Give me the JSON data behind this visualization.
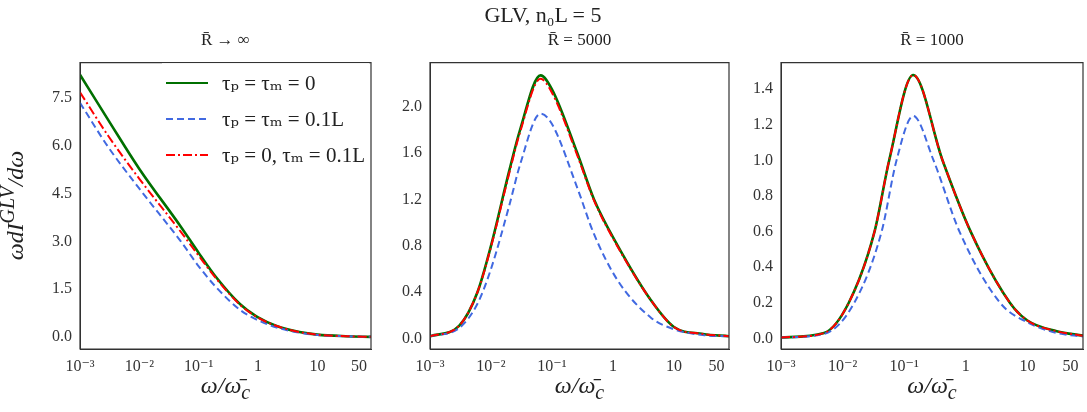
{
  "chart_data": [
    {
      "type": "line",
      "subtitle": "R̄ → ∞",
      "xlabel": "ω/ω̄$_{c}$",
      "ylabel": "ωdI$^{GLV}$/dω",
      "log": "x",
      "legend": "top right",
      "xlim": [
        0.001,
        80
      ],
      "xticks": [
        {
          "value": 0.001,
          "label": "10⁻³"
        },
        {
          "value": 0.01,
          "label": "10⁻²"
        },
        {
          "value": 0.1,
          "label": "10⁻¹"
        },
        1,
        10,
        50
      ],
      "ylim": [
        -0.37,
        8.6
      ],
      "yticks": [
        {
          "value": 0,
          "label": "0.0"
        },
        1.5,
        {
          "value": 3,
          "label": "3.0"
        },
        4.5,
        {
          "value": 6,
          "label": "6.0"
        },
        7.5
      ],
      "series": [
        {
          "name": "τₚ = τₘ = 0",
          "color": "#007000",
          "line_style": "solid",
          "x": [
            0.001,
            0.003,
            0.01,
            0.05,
            0.1,
            0.2,
            0.5,
            1,
            2,
            5,
            10,
            30,
            80
          ],
          "values": [
            8.22,
            6.8,
            5.27,
            3.46,
            2.64,
            1.86,
            1.03,
            0.62,
            0.36,
            0.16,
            0.08,
            0.03,
            0.01
          ]
        },
        {
          "name": "τₚ = τₘ = 0.1L",
          "color": "#4169e1",
          "line_style": "dashed",
          "x": [
            0.001,
            0.003,
            0.01,
            0.05,
            0.1,
            0.2,
            0.5,
            1,
            2,
            5,
            10,
            30,
            80
          ],
          "values": [
            7.34,
            5.95,
            4.65,
            3.0,
            2.22,
            1.55,
            0.85,
            0.53,
            0.31,
            0.14,
            0.07,
            0.03,
            0.01
          ]
        },
        {
          "name": "τₚ = 0,  τₘ = 0.1L",
          "color": "#ff0000",
          "line_style": "dashdot",
          "x": [
            0.001,
            0.003,
            0.01,
            0.05,
            0.1,
            0.2,
            0.5,
            1,
            2,
            5,
            10,
            30,
            80
          ],
          "values": [
            7.67,
            6.3,
            4.96,
            3.3,
            2.55,
            1.82,
            1.01,
            0.61,
            0.36,
            0.16,
            0.08,
            0.03,
            0.01
          ]
        }
      ]
    },
    {
      "type": "line",
      "title": "GLV,  n₀L = 5",
      "subtitle": "R̄ = 5000",
      "xlabel": "ω/ω̄$_{c}$",
      "log": "x",
      "xlim": [
        0.001,
        80
      ],
      "xticks": [
        {
          "value": 0.001,
          "label": "10⁻³"
        },
        {
          "value": 0.01,
          "label": "10⁻²"
        },
        {
          "value": 0.1,
          "label": "10⁻¹"
        },
        1,
        10,
        50
      ],
      "ylim": [
        -0.09,
        2.38
      ],
      "yticks": [
        {
          "value": 0,
          "label": "0.0"
        },
        0.4,
        0.8,
        1.2,
        1.6,
        {
          "value": 2,
          "label": "2.0"
        }
      ],
      "series": [
        {
          "color": "#007000",
          "line_style": "solid",
          "x": [
            0.001,
            0.003,
            0.006,
            0.01,
            0.02,
            0.03,
            0.065,
            0.1,
            0.26,
            0.49,
            1.2,
            4.2,
            10,
            30,
            80
          ],
          "values": [
            0.02,
            0.11,
            0.4,
            0.8,
            1.45,
            1.8,
            2.27,
            2.15,
            1.6,
            1.2,
            0.8,
            0.33,
            0.1,
            0.04,
            0.02
          ]
        },
        {
          "color": "#4169e1",
          "line_style": "dashed",
          "x": [
            0.001,
            0.003,
            0.006,
            0.01,
            0.02,
            0.03,
            0.065,
            0.1,
            0.26,
            0.49,
            1.2,
            4.2,
            10,
            30,
            80
          ],
          "values": [
            0.02,
            0.09,
            0.3,
            0.6,
            1.15,
            1.5,
            1.94,
            1.85,
            1.3,
            0.9,
            0.5,
            0.18,
            0.08,
            0.03,
            0.02
          ]
        },
        {
          "color": "#ff0000",
          "line_style": "dashdot",
          "x": [
            0.001,
            0.003,
            0.006,
            0.01,
            0.02,
            0.03,
            0.065,
            0.1,
            0.26,
            0.49,
            1.2,
            4.2,
            10,
            30,
            80
          ],
          "values": [
            0.02,
            0.11,
            0.4,
            0.79,
            1.43,
            1.78,
            2.24,
            2.12,
            1.58,
            1.19,
            0.79,
            0.33,
            0.1,
            0.04,
            0.02
          ]
        }
      ]
    },
    {
      "type": "line",
      "subtitle": "R̄ = 1000",
      "xlabel": "ω/ω̄$_{c}$",
      "log": "x",
      "xlim": [
        0.001,
        80
      ],
      "xticks": [
        {
          "value": 0.001,
          "label": "10⁻³"
        },
        {
          "value": 0.01,
          "label": "10⁻²"
        },
        {
          "value": 0.1,
          "label": "10⁻¹"
        },
        1,
        10,
        50
      ],
      "ylim": [
        -0.06,
        1.55
      ],
      "yticks": [
        {
          "value": 0,
          "label": "0.0"
        },
        0.2,
        0.4,
        0.6,
        0.8,
        {
          "value": 1,
          "label": "1.0"
        },
        1.2,
        1.4
      ],
      "series": [
        {
          "color": "#007000",
          "line_style": "solid",
          "x": [
            0.001,
            0.005,
            0.0126,
            0.033,
            0.057,
            0.14,
            0.42,
            1.2,
            5.2,
            10,
            30,
            80
          ],
          "values": [
            0.005,
            0.03,
            0.2,
            0.6,
            1.0,
            1.48,
            1.0,
            0.6,
            0.2,
            0.1,
            0.04,
            0.015
          ]
        },
        {
          "color": "#4169e1",
          "line_style": "dashed",
          "x": [
            0.001,
            0.005,
            0.0155,
            0.043,
            0.075,
            0.14,
            0.3,
            0.79,
            3.6,
            10,
            30,
            80
          ],
          "values": [
            0.005,
            0.025,
            0.2,
            0.6,
            1.0,
            1.25,
            1.0,
            0.6,
            0.2,
            0.09,
            0.03,
            0.01
          ]
        },
        {
          "color": "#ff0000",
          "line_style": "dashdot",
          "x": [
            0.001,
            0.005,
            0.0126,
            0.033,
            0.057,
            0.14,
            0.42,
            1.2,
            5.2,
            10,
            30,
            80
          ],
          "values": [
            0.005,
            0.03,
            0.2,
            0.6,
            1.0,
            1.48,
            1.0,
            0.6,
            0.2,
            0.1,
            0.04,
            0.015
          ]
        }
      ]
    }
  ]
}
